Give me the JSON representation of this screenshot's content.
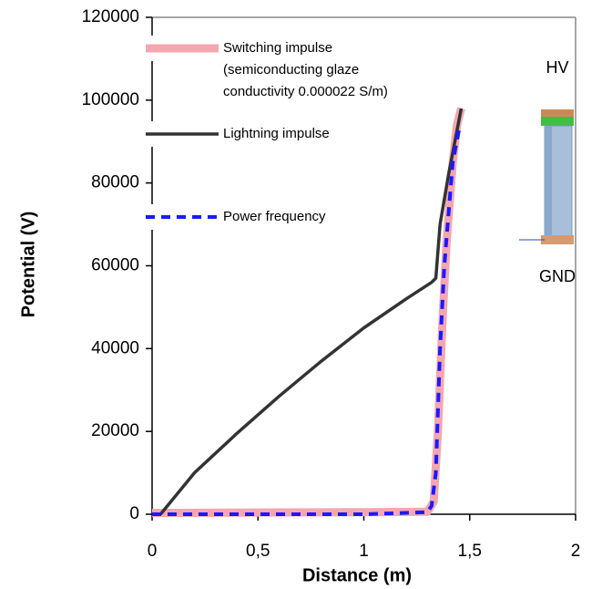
{
  "chart_data": {
    "type": "line",
    "x_label": "Distance (m)",
    "y_label": "Potential (V)",
    "xlim": [
      0,
      2
    ],
    "ylim": [
      0,
      120000
    ],
    "xticks": [
      0,
      {
        "value": 0.5,
        "label": "0,5"
      },
      1,
      {
        "value": 1.5,
        "label": "1,5"
      },
      2
    ],
    "yticks": [
      0,
      20000,
      40000,
      60000,
      80000,
      100000,
      120000
    ],
    "legend": "upper left",
    "annotations": [
      "HV",
      "GND"
    ],
    "series": [
      {
        "name": "Switching impulse (semiconducting glaze conductivity 0.000022 S/m)",
        "color": "#f4a7b1",
        "style": "solid",
        "x": [
          0,
          0.5,
          1.0,
          1.3,
          1.33,
          1.35,
          1.37,
          1.39,
          1.42,
          1.44,
          1.46
        ],
        "values": [
          300,
          400,
          500,
          600,
          3000,
          20000,
          45000,
          65000,
          85000,
          94000,
          98000
        ]
      },
      {
        "name": "Lightning impulse",
        "color": "#333333",
        "style": "solid",
        "x": [
          0.04,
          0.2,
          0.4,
          0.6,
          0.8,
          1.0,
          1.2,
          1.32,
          1.34,
          1.36,
          1.4,
          1.46
        ],
        "values": [
          0,
          10000,
          19500,
          28500,
          37000,
          45000,
          52000,
          56000,
          57000,
          70000,
          82000,
          98000
        ]
      },
      {
        "name": "Power frequency",
        "color": "#1a1aff",
        "style": "dashed",
        "x": [
          0,
          0.5,
          1.0,
          1.3,
          1.32,
          1.34,
          1.36,
          1.38,
          1.42,
          1.45
        ],
        "values": [
          0,
          0,
          0,
          500,
          2000,
          10000,
          40000,
          60000,
          85000,
          93000
        ]
      }
    ]
  }
}
